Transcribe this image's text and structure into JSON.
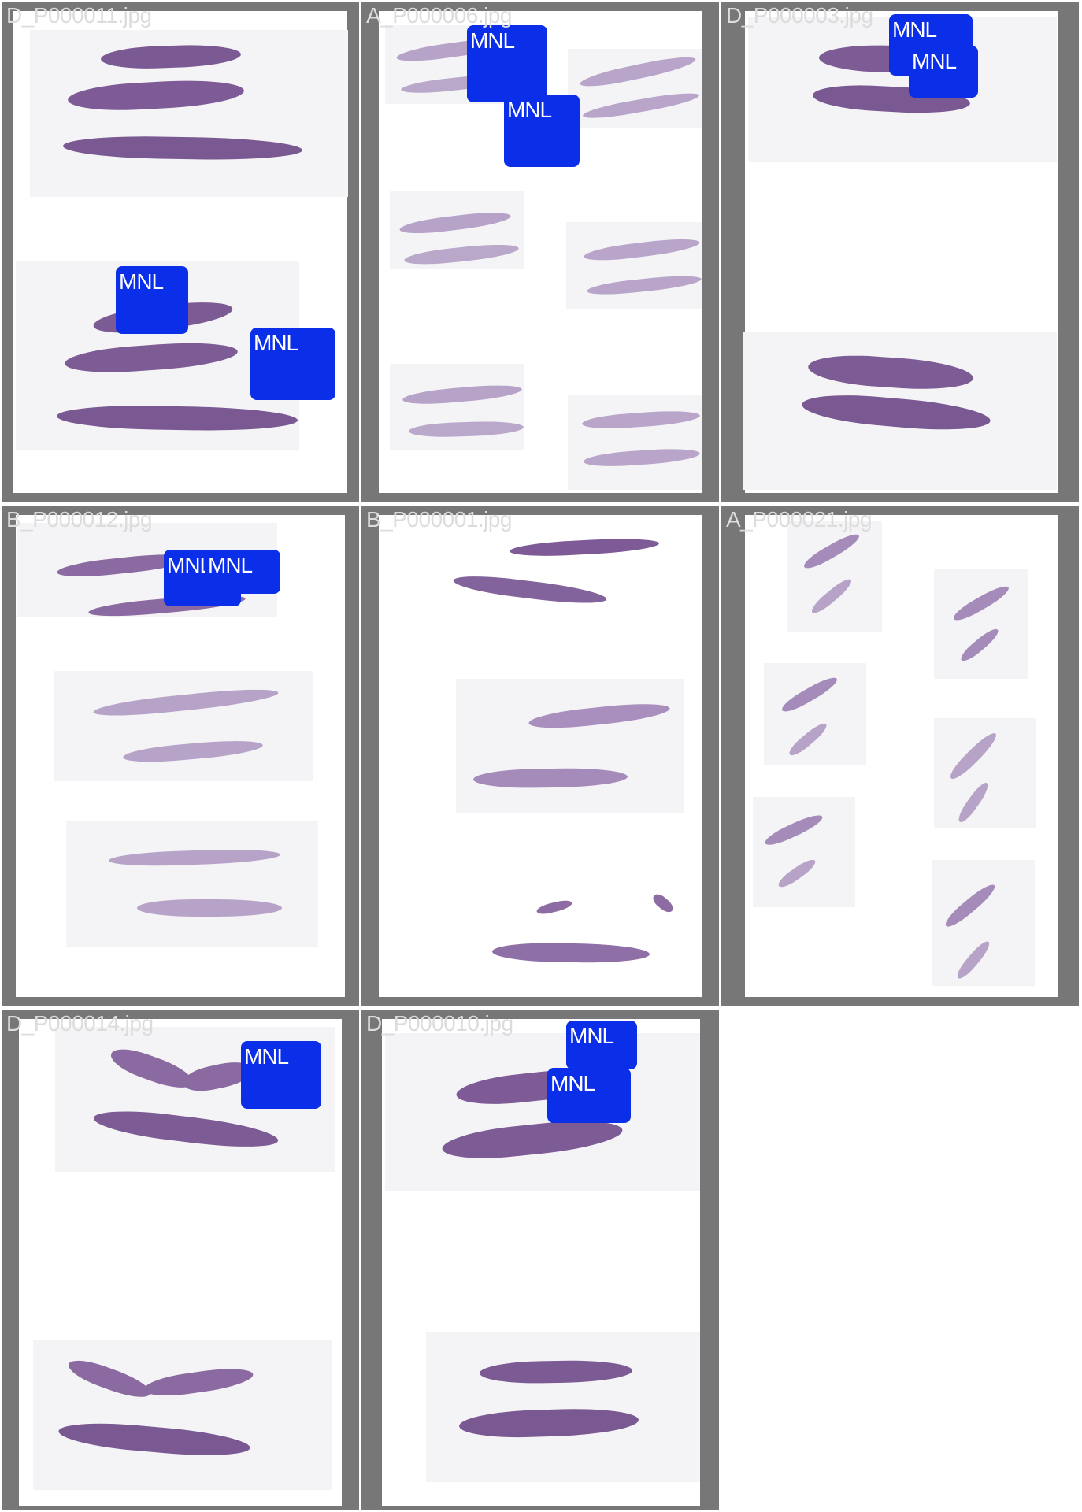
{
  "panels": [
    {
      "caption": "D_P000011.jpg",
      "detections": [
        "MNL",
        "MNL"
      ]
    },
    {
      "caption": "A_P000006.jpg",
      "detections": [
        "MNL",
        "MNL"
      ]
    },
    {
      "caption": "D_P000003.jpg",
      "detections": [
        "MNL",
        "MNL"
      ]
    },
    {
      "caption": "B_P000012.jpg",
      "detections": [
        "MNL",
        "MNL"
      ]
    },
    {
      "caption": "B_P000001.jpg",
      "detections": []
    },
    {
      "caption": "A_P000021.jpg",
      "detections": []
    },
    {
      "caption": "D_P000014.jpg",
      "detections": [
        "MNL"
      ]
    },
    {
      "caption": "D_P000010.jpg",
      "detections": [
        "MNL",
        "MNL"
      ]
    }
  ],
  "colors": {
    "detection_box": "#0b2ee8",
    "frame": "#777777",
    "tissue_dark": "#7b5a93",
    "tissue_light": "#b7a3c8"
  }
}
